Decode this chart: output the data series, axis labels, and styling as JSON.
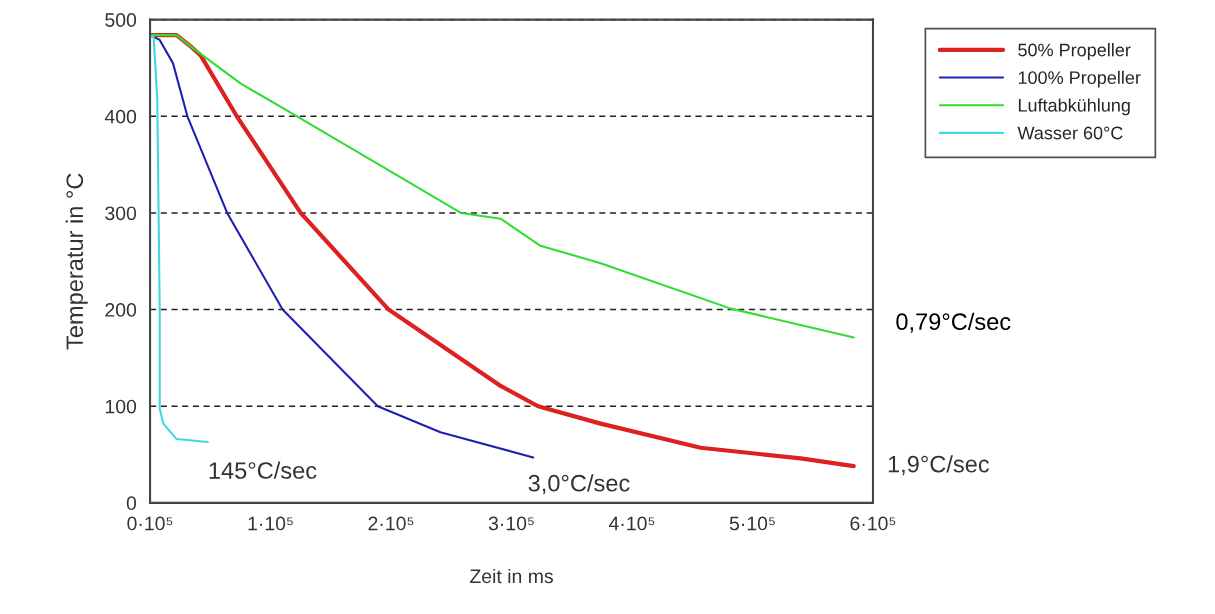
{
  "chart_data": {
    "type": "line",
    "xlabel": "Zeit in ms",
    "ylabel": "Temperatur in °C",
    "xlim": [
      0,
      600000
    ],
    "ylim": [
      0,
      500
    ],
    "xticks": [
      {
        "value": 0,
        "label": "0·10⁵"
      },
      {
        "value": 100000,
        "label": "1·10⁵"
      },
      {
        "value": 200000,
        "label": "2·10⁵"
      },
      {
        "value": 300000,
        "label": "3·10⁵"
      },
      {
        "value": 400000,
        "label": "4·10⁵"
      },
      {
        "value": 500000,
        "label": "5·10⁵"
      },
      {
        "value": 600000,
        "label": "6·10⁵"
      }
    ],
    "yticks": [
      0,
      100,
      200,
      300,
      400,
      500
    ],
    "grid": "y",
    "legend": "top right",
    "marker": "none",
    "line_style": "solid",
    "series": [
      {
        "name": "50% Propeller",
        "color": "#dd2020",
        "x": [
          0,
          22000,
          35000,
          42000,
          72000,
          125000,
          198000,
          291000,
          322000,
          374000,
          457000,
          540000,
          584000
        ],
        "values": [
          484,
          484,
          471,
          463,
          400,
          300,
          200,
          121,
          100,
          82,
          57,
          46,
          38
        ]
      },
      {
        "name": "100% Propeller",
        "color": "#2020b0",
        "x": [
          0,
          8000,
          19000,
          31000,
          64000,
          110000,
          189000,
          241000,
          318000
        ],
        "values": [
          484,
          479,
          455,
          400,
          300,
          200,
          100,
          73,
          47
        ]
      },
      {
        "name": "Luftabkühlung",
        "color": "#30dd30",
        "x": [
          0,
          22000,
          35000,
          75000,
          122000,
          258000,
          291000,
          324000,
          374000,
          482000,
          584000
        ],
        "values": [
          484,
          484,
          471,
          434,
          400,
          300,
          294,
          266,
          248,
          201,
          171
        ]
      },
      {
        "name": "Wasser 60°C",
        "color": "#40d8e0",
        "x": [
          0,
          3000,
          6000,
          8000,
          8000,
          11000,
          22000,
          48000
        ],
        "values": [
          484,
          482,
          417,
          202,
          98,
          82,
          66,
          63
        ]
      }
    ],
    "annotations": [
      {
        "text": "145°C/sec",
        "x": 48000,
        "y": 63
      },
      {
        "text": "3,0°C/sec",
        "x": 318000,
        "y": 47
      },
      {
        "text": "1,9°C/sec",
        "x": 584000,
        "y": 38
      },
      {
        "text": "0,79°C/sec",
        "x": 584000,
        "y": 171
      }
    ]
  }
}
